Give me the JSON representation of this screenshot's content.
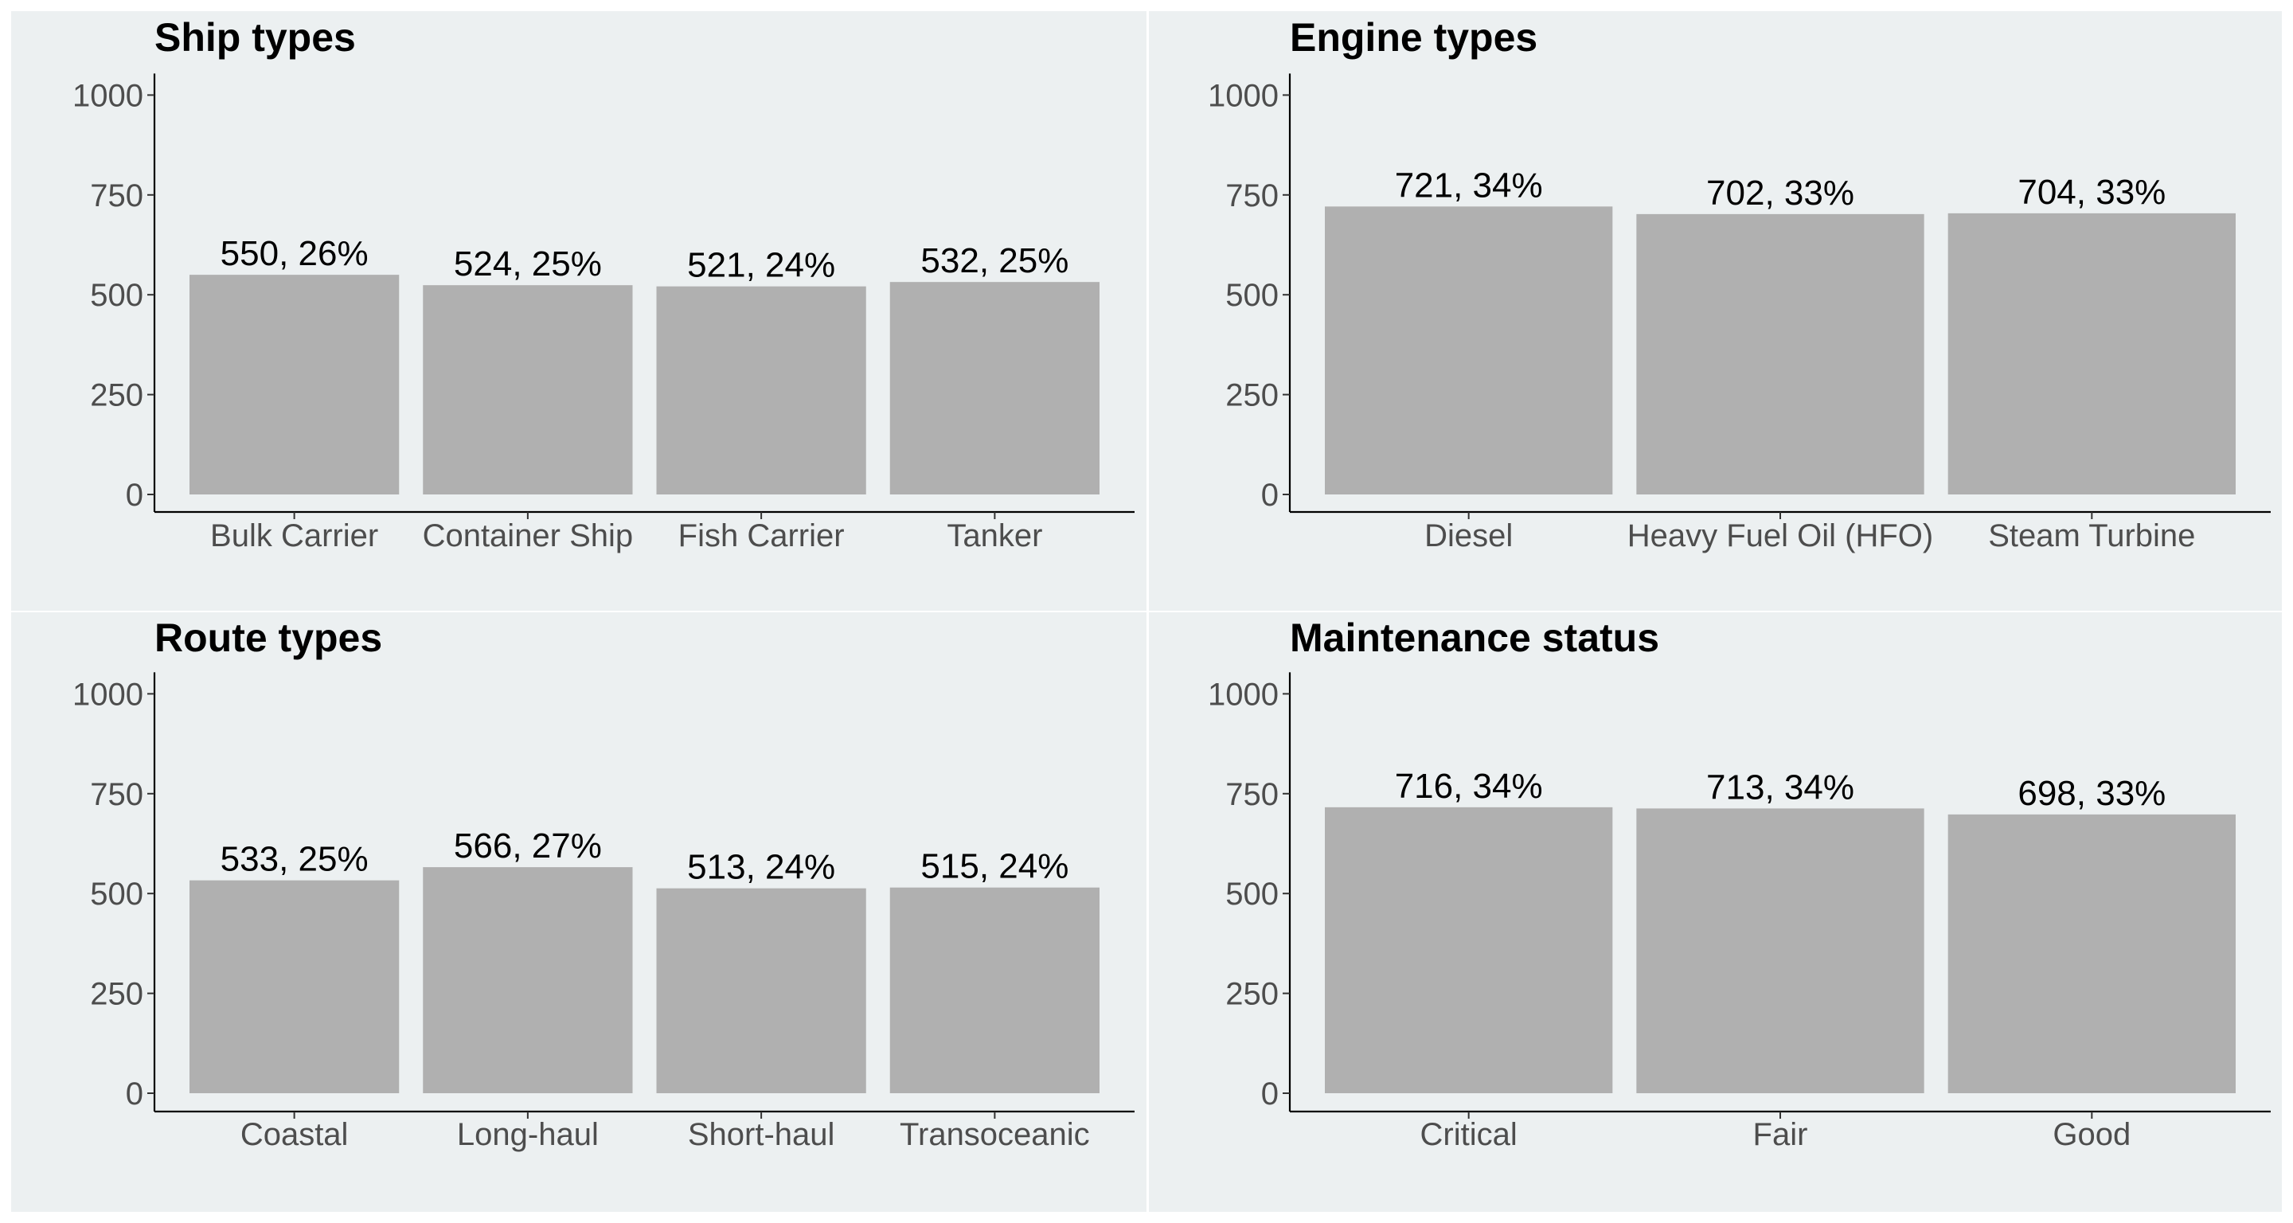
{
  "colors": {
    "panel_background": "#ecf0f1",
    "bar": "#b0b0b0",
    "separator": "#ffffff"
  },
  "chart_data": [
    {
      "type": "bar",
      "title": "Ship types",
      "categories": [
        "Bulk Carrier",
        "Container Ship",
        "Fish Carrier",
        "Tanker"
      ],
      "values": [
        550,
        524,
        521,
        532
      ],
      "data_labels": [
        "550, 26%",
        "524, 25%",
        "521, 24%",
        "532, 25%"
      ],
      "xlabel": "",
      "ylabel": "",
      "ylim": [
        0,
        1000
      ],
      "yticks": [
        "0",
        "250",
        "500",
        "750",
        "1000"
      ],
      "grid": false,
      "legend": "none"
    },
    {
      "type": "bar",
      "title": "Engine types",
      "categories": [
        "Diesel",
        "Heavy Fuel Oil (HFO)",
        "Steam Turbine"
      ],
      "values": [
        721,
        702,
        704
      ],
      "data_labels": [
        "721, 34%",
        "702, 33%",
        "704, 33%"
      ],
      "xlabel": "",
      "ylabel": "",
      "ylim": [
        0,
        1000
      ],
      "yticks": [
        "0",
        "250",
        "500",
        "750",
        "1000"
      ],
      "grid": false,
      "legend": "none"
    },
    {
      "type": "bar",
      "title": "Route types",
      "categories": [
        "Coastal",
        "Long-haul",
        "Short-haul",
        "Transoceanic"
      ],
      "values": [
        533,
        566,
        513,
        515
      ],
      "data_labels": [
        "533, 25%",
        "566, 27%",
        "513, 24%",
        "515, 24%"
      ],
      "xlabel": "",
      "ylabel": "",
      "ylim": [
        0,
        1000
      ],
      "yticks": [
        "0",
        "250",
        "500",
        "750",
        "1000"
      ],
      "grid": false,
      "legend": "none"
    },
    {
      "type": "bar",
      "title": "Maintenance status",
      "categories": [
        "Critical",
        "Fair",
        "Good"
      ],
      "values": [
        716,
        713,
        698
      ],
      "data_labels": [
        "716, 34%",
        "713, 34%",
        "698, 33%"
      ],
      "xlabel": "",
      "ylabel": "",
      "ylim": [
        0,
        1000
      ],
      "yticks": [
        "0",
        "250",
        "500",
        "750",
        "1000"
      ],
      "grid": false,
      "legend": "none"
    }
  ]
}
